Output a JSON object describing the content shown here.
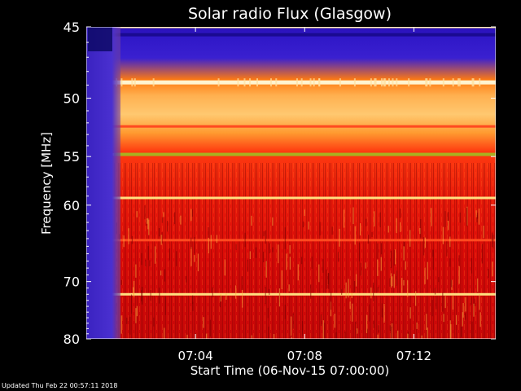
{
  "chart_data": {
    "type": "heatmap",
    "title": "Solar radio Flux (Glasgow)",
    "ylabel": "Frequency [MHz]",
    "xlabel": "Start Time (06-Nov-15 07:00:00)",
    "y_ticks": [
      45,
      50,
      55,
      60,
      70,
      80
    ],
    "y_tick_labels": [
      "45",
      "50",
      "55",
      "60",
      "70",
      "80"
    ],
    "x_ticks": [
      "07:04",
      "07:08",
      "07:12"
    ],
    "ylim": [
      45,
      80
    ],
    "x_start": "07:00:00",
    "x_end": "07:15:00",
    "y_scale": "reciprocal",
    "colormap": [
      "#1a0aa0",
      "#4a2ad8",
      "#8a1a3a",
      "#c80a0a",
      "#ff3a0a",
      "#ff8a1a",
      "#ffc060",
      "#fff0c0",
      "#a8b020"
    ],
    "bands": [
      {
        "freq": 45.0,
        "intensity": "high"
      },
      {
        "freq": 45.5,
        "intensity": "low"
      },
      {
        "freq": 48.8,
        "intensity": "very-high"
      },
      {
        "freq": 52.3,
        "intensity": "medium"
      },
      {
        "freq": 54.8,
        "intensity": "high"
      },
      {
        "freq": 59.2,
        "intensity": "high"
      },
      {
        "freq": 64.2,
        "intensity": "medium"
      },
      {
        "freq": 72.0,
        "intensity": "high"
      }
    ]
  },
  "footer": {
    "updated": "Updated Thu Feb 22 00:57:11 2018"
  }
}
